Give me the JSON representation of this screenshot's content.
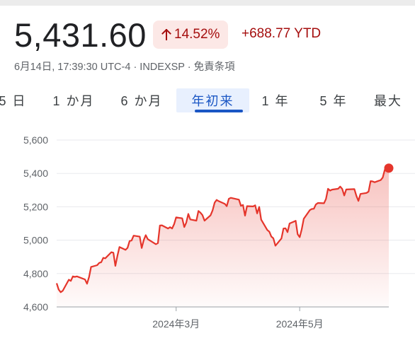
{
  "quote": {
    "price": "5,431.60",
    "change_percent": "14.52%",
    "change_icon": "arrow-up-icon",
    "change_ytd": "+688.77 YTD",
    "meta": "6月14日, 17:39:30 UTC-4 · INDEXSP · 免責条項",
    "colors": {
      "negative_text": "#a50e0e",
      "pill_bg": "#fce8e6",
      "line": "#e5352b",
      "accent_blue": "#1a56c4"
    }
  },
  "tabs": [
    {
      "label": "5 日",
      "active": false
    },
    {
      "label": "1 か月",
      "active": false
    },
    {
      "label": "6 か月",
      "active": false
    },
    {
      "label": "年初来",
      "active": true
    },
    {
      "label": "1 年",
      "active": false
    },
    {
      "label": "5 年",
      "active": false
    },
    {
      "label": "最大",
      "active": false
    }
  ],
  "chart_data": {
    "type": "area",
    "title": "",
    "xlabel": "",
    "ylabel": "",
    "ylim": [
      4600,
      5600
    ],
    "yticks": [
      "5,600",
      "5,400",
      "5,200",
      "5,000",
      "4,800",
      "4,600"
    ],
    "ytick_values": [
      5600,
      5400,
      5200,
      5000,
      4800,
      4600
    ],
    "xticks": [
      {
        "label": "2024年3月",
        "date": "2024-03-01"
      },
      {
        "label": "2024年5月",
        "date": "2024-05-01"
      }
    ],
    "xlim": [
      "2024-01-02",
      "2024-06-14"
    ],
    "grid": "horizontal",
    "series": [
      {
        "values": [
          [
            "2024-01-02",
            4742
          ],
          [
            "2024-01-03",
            4704
          ],
          [
            "2024-01-04",
            4688
          ],
          [
            "2024-01-05",
            4697
          ],
          [
            "2024-01-08",
            4763
          ],
          [
            "2024-01-09",
            4756
          ],
          [
            "2024-01-10",
            4783
          ],
          [
            "2024-01-11",
            4780
          ],
          [
            "2024-01-12",
            4783
          ],
          [
            "2024-01-16",
            4765
          ],
          [
            "2024-01-17",
            4739
          ],
          [
            "2024-01-18",
            4780
          ],
          [
            "2024-01-19",
            4840
          ],
          [
            "2024-01-22",
            4850
          ],
          [
            "2024-01-23",
            4864
          ],
          [
            "2024-01-24",
            4868
          ],
          [
            "2024-01-25",
            4894
          ],
          [
            "2024-01-26",
            4891
          ],
          [
            "2024-01-29",
            4928
          ],
          [
            "2024-01-30",
            4925
          ],
          [
            "2024-01-31",
            4846
          ],
          [
            "2024-02-01",
            4906
          ],
          [
            "2024-02-02",
            4959
          ],
          [
            "2024-02-05",
            4942
          ],
          [
            "2024-02-06",
            4954
          ],
          [
            "2024-02-07",
            4995
          ],
          [
            "2024-02-08",
            4998
          ],
          [
            "2024-02-09",
            5027
          ],
          [
            "2024-02-12",
            5021
          ],
          [
            "2024-02-13",
            4953
          ],
          [
            "2024-02-14",
            5001
          ],
          [
            "2024-02-15",
            5030
          ],
          [
            "2024-02-16",
            5006
          ],
          [
            "2024-02-20",
            4976
          ],
          [
            "2024-02-21",
            4982
          ],
          [
            "2024-02-22",
            5088
          ],
          [
            "2024-02-23",
            5089
          ],
          [
            "2024-02-26",
            5070
          ],
          [
            "2024-02-27",
            5078
          ],
          [
            "2024-02-28",
            5070
          ],
          [
            "2024-02-29",
            5096
          ],
          [
            "2024-03-01",
            5137
          ],
          [
            "2024-03-04",
            5131
          ],
          [
            "2024-03-05",
            5079
          ],
          [
            "2024-03-06",
            5105
          ],
          [
            "2024-03-07",
            5157
          ],
          [
            "2024-03-08",
            5124
          ],
          [
            "2024-03-11",
            5117
          ],
          [
            "2024-03-12",
            5175
          ],
          [
            "2024-03-13",
            5165
          ],
          [
            "2024-03-14",
            5150
          ],
          [
            "2024-03-15",
            5117
          ],
          [
            "2024-03-18",
            5149
          ],
          [
            "2024-03-19",
            5179
          ],
          [
            "2024-03-20",
            5225
          ],
          [
            "2024-03-21",
            5241
          ],
          [
            "2024-03-22",
            5234
          ],
          [
            "2024-03-25",
            5218
          ],
          [
            "2024-03-26",
            5204
          ],
          [
            "2024-03-27",
            5248
          ],
          [
            "2024-03-28",
            5254
          ],
          [
            "2024-04-01",
            5243
          ],
          [
            "2024-04-02",
            5206
          ],
          [
            "2024-04-03",
            5211
          ],
          [
            "2024-04-04",
            5147
          ],
          [
            "2024-04-05",
            5204
          ],
          [
            "2024-04-08",
            5202
          ],
          [
            "2024-04-09",
            5209
          ],
          [
            "2024-04-10",
            5160
          ],
          [
            "2024-04-11",
            5199
          ],
          [
            "2024-04-12",
            5123
          ],
          [
            "2024-04-15",
            5061
          ],
          [
            "2024-04-16",
            5051
          ],
          [
            "2024-04-17",
            5022
          ],
          [
            "2024-04-18",
            5011
          ],
          [
            "2024-04-19",
            4967
          ],
          [
            "2024-04-22",
            5010
          ],
          [
            "2024-04-23",
            5070
          ],
          [
            "2024-04-24",
            5071
          ],
          [
            "2024-04-25",
            5048
          ],
          [
            "2024-04-26",
            5100
          ],
          [
            "2024-04-29",
            5116
          ],
          [
            "2024-04-30",
            5036
          ],
          [
            "2024-05-01",
            5018
          ],
          [
            "2024-05-02",
            5064
          ],
          [
            "2024-05-03",
            5128
          ],
          [
            "2024-05-06",
            5180
          ],
          [
            "2024-05-07",
            5187
          ],
          [
            "2024-05-08",
            5188
          ],
          [
            "2024-05-09",
            5214
          ],
          [
            "2024-05-10",
            5223
          ],
          [
            "2024-05-13",
            5221
          ],
          [
            "2024-05-14",
            5247
          ],
          [
            "2024-05-15",
            5308
          ],
          [
            "2024-05-16",
            5297
          ],
          [
            "2024-05-17",
            5303
          ],
          [
            "2024-05-20",
            5308
          ],
          [
            "2024-05-21",
            5321
          ],
          [
            "2024-05-22",
            5307
          ],
          [
            "2024-05-23",
            5268
          ],
          [
            "2024-05-24",
            5304
          ],
          [
            "2024-05-28",
            5306
          ],
          [
            "2024-05-29",
            5266
          ],
          [
            "2024-05-30",
            5235
          ],
          [
            "2024-05-31",
            5277
          ],
          [
            "2024-06-03",
            5283
          ],
          [
            "2024-06-04",
            5291
          ],
          [
            "2024-06-05",
            5354
          ],
          [
            "2024-06-06",
            5352
          ],
          [
            "2024-06-07",
            5347
          ],
          [
            "2024-06-10",
            5360
          ],
          [
            "2024-06-11",
            5375
          ],
          [
            "2024-06-12",
            5421
          ],
          [
            "2024-06-13",
            5433
          ],
          [
            "2024-06-14",
            5431.6
          ]
        ]
      }
    ]
  }
}
